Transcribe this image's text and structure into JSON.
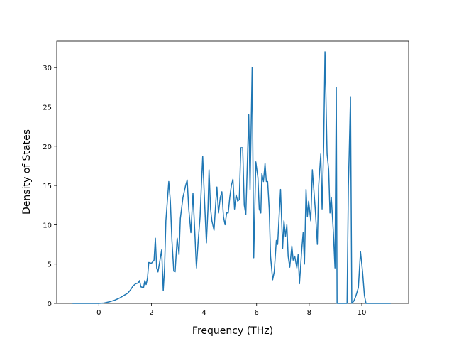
{
  "chart_data": {
    "type": "line",
    "x_label": "Frequency (THz)",
    "y_label": "Density of States",
    "x": [
      -1.0,
      0.0,
      0.2,
      0.4,
      0.6,
      0.8,
      1.0,
      1.1,
      1.2,
      1.3,
      1.4,
      1.5,
      1.55,
      1.6,
      1.7,
      1.75,
      1.8,
      1.85,
      1.9,
      2.0,
      2.1,
      2.15,
      2.2,
      2.25,
      2.39,
      2.45,
      2.5,
      2.55,
      2.66,
      2.72,
      2.78,
      2.85,
      2.9,
      2.98,
      3.05,
      3.1,
      3.2,
      3.3,
      3.36,
      3.42,
      3.5,
      3.58,
      3.65,
      3.71,
      3.78,
      3.85,
      3.9,
      3.95,
      4.02,
      4.09,
      4.15,
      4.19,
      4.25,
      4.3,
      4.38,
      4.45,
      4.49,
      4.55,
      4.62,
      4.68,
      4.74,
      4.8,
      4.86,
      4.92,
      4.98,
      5.04,
      5.1,
      5.16,
      5.22,
      5.28,
      5.34,
      5.4,
      5.47,
      5.53,
      5.59,
      5.64,
      5.7,
      5.75,
      5.83,
      5.89,
      5.97,
      6.05,
      6.1,
      6.16,
      6.2,
      6.26,
      6.32,
      6.37,
      6.42,
      6.48,
      6.53,
      6.61,
      6.67,
      6.75,
      6.8,
      6.91,
      6.99,
      7.04,
      7.1,
      7.15,
      7.2,
      7.26,
      7.34,
      7.39,
      7.45,
      7.53,
      7.58,
      7.63,
      7.72,
      7.77,
      7.82,
      7.88,
      7.93,
      7.98,
      8.06,
      8.12,
      8.23,
      8.31,
      8.36,
      8.44,
      8.49,
      8.55,
      8.6,
      8.68,
      8.74,
      8.79,
      8.84,
      8.92,
      8.98,
      9.03,
      9.06,
      9.44,
      9.49,
      9.52,
      9.57,
      9.62,
      9.7,
      9.78,
      9.87,
      9.95,
      10.03,
      10.1,
      10.16,
      11.1
    ],
    "series": [
      {
        "color": "#1f77b4",
        "values": [
          0,
          0,
          0.05,
          0.2,
          0.4,
          0.7,
          1.1,
          1.3,
          1.7,
          2.2,
          2.5,
          2.6,
          2.9,
          2.1,
          2.0,
          2.9,
          2.4,
          3.2,
          5.2,
          5.1,
          5.5,
          8.3,
          4.5,
          4.0,
          6.8,
          1.6,
          4.5,
          10.5,
          15.5,
          13,
          8,
          4.1,
          4.0,
          8.3,
          6.2,
          10.8,
          13.5,
          15.0,
          15.7,
          12,
          9,
          14,
          9,
          4.5,
          8,
          11,
          15,
          18.7,
          13,
          7.7,
          12,
          17,
          12,
          10.5,
          9.3,
          13,
          14.8,
          11.5,
          13.5,
          14.2,
          11,
          10,
          11.5,
          11.5,
          13.5,
          15,
          15.8,
          12,
          13.8,
          13,
          13.2,
          19.8,
          19.8,
          12.5,
          11.3,
          17,
          24,
          14.5,
          30,
          5.8,
          18,
          16,
          12,
          11.5,
          16.5,
          15.5,
          17.8,
          15.5,
          15.5,
          12,
          6,
          3,
          4,
          8,
          7.5,
          14.5,
          7,
          10.5,
          8.5,
          10,
          6,
          4.6,
          7.3,
          5.5,
          6,
          4.5,
          6.2,
          2.5,
          7,
          9,
          5,
          14.5,
          11,
          13,
          10.5,
          17,
          12,
          7.5,
          15,
          19,
          12,
          20,
          32,
          19,
          17,
          11.5,
          13.5,
          9,
          4.5,
          27.5,
          0,
          0,
          15,
          19,
          26.3,
          0,
          0.3,
          1,
          2,
          6.6,
          4,
          1,
          0,
          0
        ]
      }
    ],
    "xlim": [
      -1.6,
      11.78
    ],
    "ylim": [
      0,
      33.36
    ],
    "xticks": [
      0,
      2,
      4,
      6,
      8,
      10
    ],
    "yticks": [
      0,
      5,
      10,
      15,
      20,
      25,
      30
    ]
  }
}
